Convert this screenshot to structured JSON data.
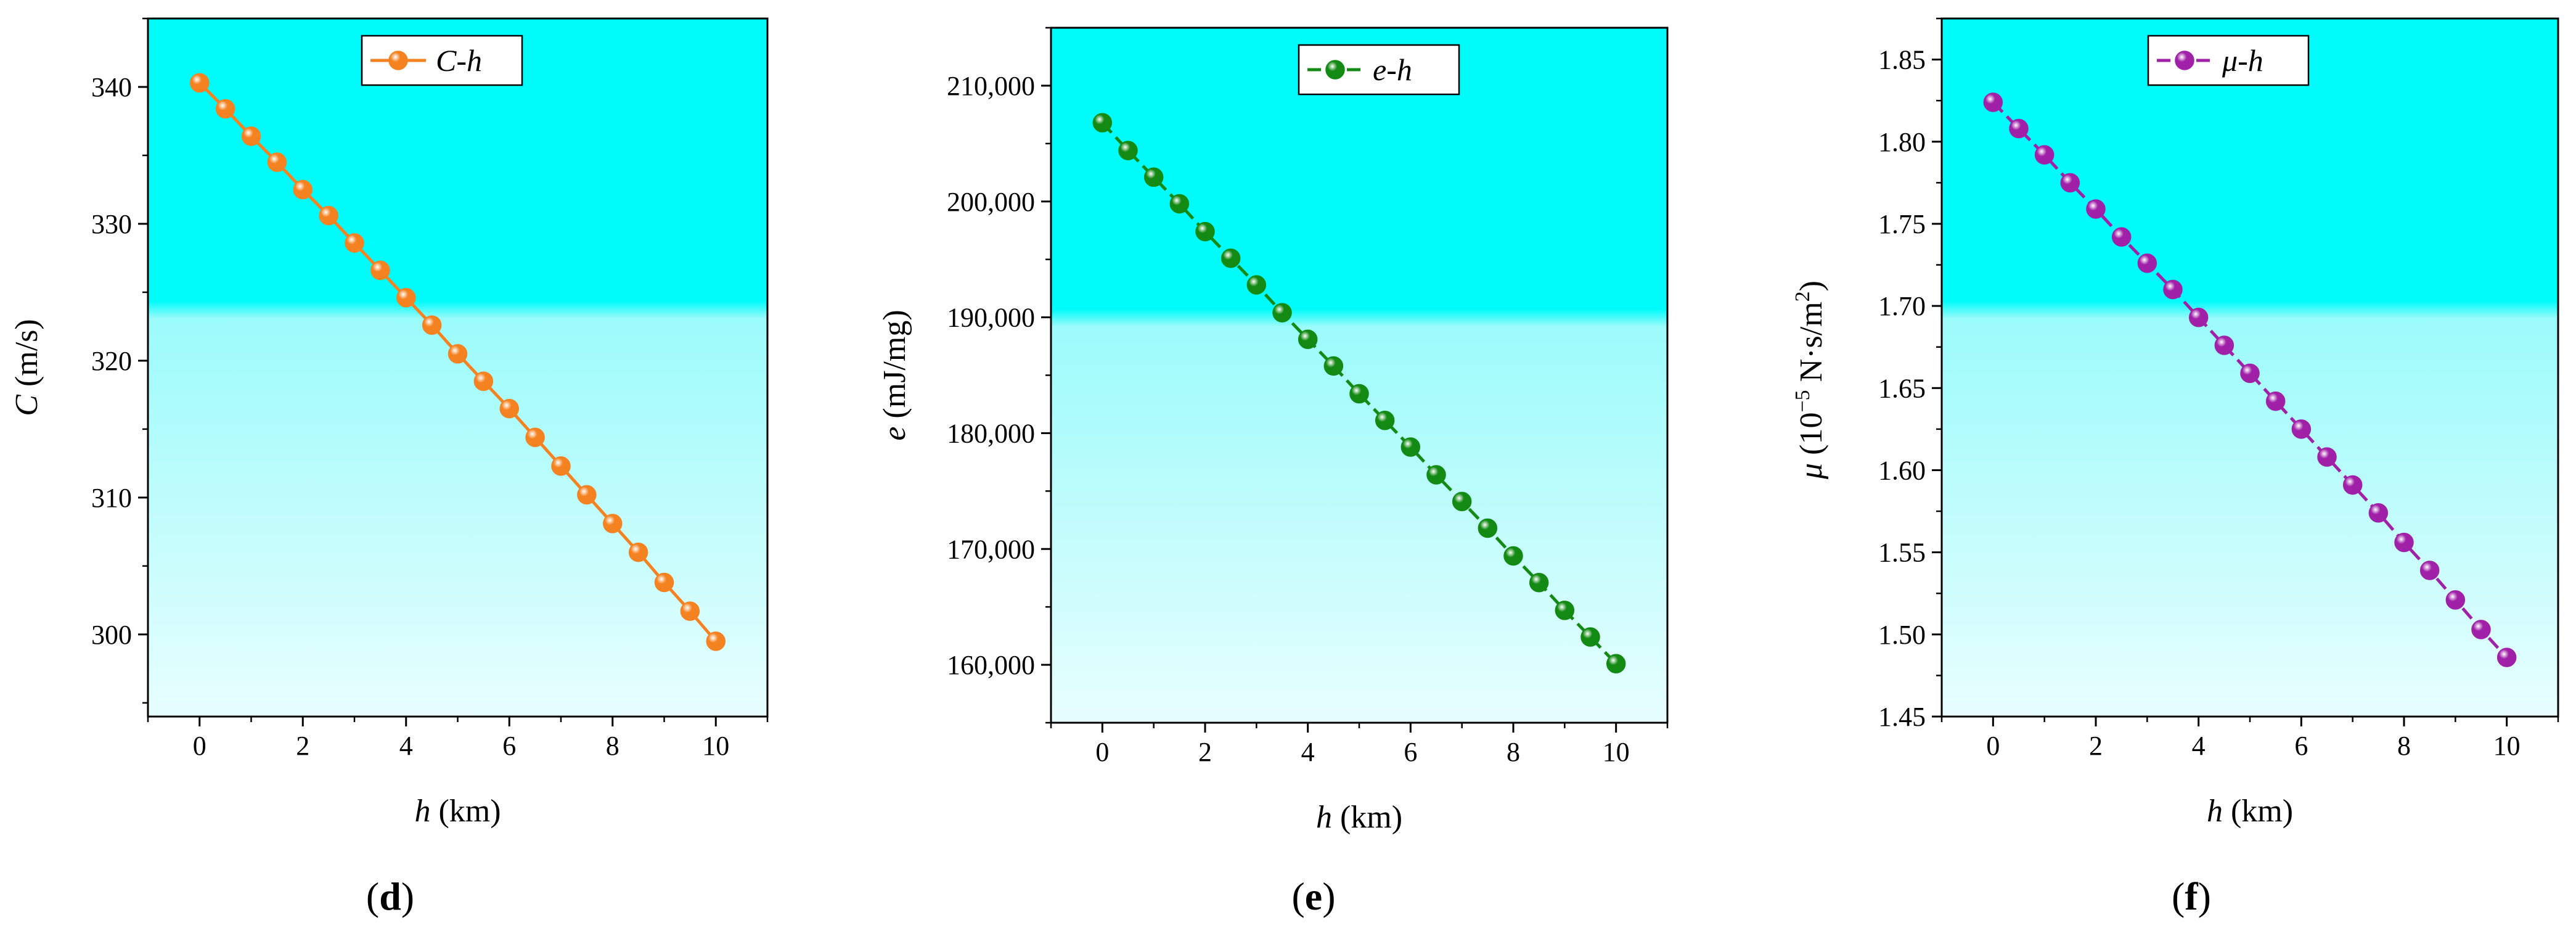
{
  "chart_data": [
    {
      "type": "line",
      "panel_label": "d",
      "legend": {
        "label": "C-h",
        "var": "C",
        "suffix": "-h",
        "placement": "top-center",
        "color": "#F58220"
      },
      "xlabel": {
        "var": "h",
        "rest": " (km)"
      },
      "ylabel": {
        "var": "C",
        "rest": " (m/s)"
      },
      "xlim": [
        -1,
        11
      ],
      "ylim": [
        294,
        345
      ],
      "xticks": [
        0,
        2,
        4,
        6,
        8,
        10
      ],
      "yticks": [
        300,
        310,
        320,
        330,
        340
      ],
      "ytick_labels": [
        "300",
        "310",
        "320",
        "330",
        "340"
      ],
      "x": [
        0,
        0.5,
        1,
        1.5,
        2,
        2.5,
        3,
        3.5,
        4,
        4.5,
        5,
        5.5,
        6,
        6.5,
        7,
        7.5,
        8,
        8.5,
        9,
        9.5,
        10
      ],
      "series": [
        {
          "name": "C-h",
          "line_style": "solid",
          "color": "#F58220",
          "values": [
            340.3,
            338.4,
            336.4,
            334.5,
            332.5,
            330.6,
            328.6,
            326.6,
            324.6,
            322.6,
            320.5,
            318.5,
            316.5,
            314.4,
            312.3,
            310.2,
            308.1,
            306.0,
            303.8,
            301.7,
            299.5
          ]
        }
      ]
    },
    {
      "type": "line",
      "panel_label": "e",
      "legend": {
        "label": "e-h",
        "var": "e",
        "suffix": "-h",
        "placement": "top-center",
        "color": "#138A13"
      },
      "xlabel": {
        "var": "h",
        "rest": " (km)"
      },
      "ylabel": {
        "var": "e",
        "rest": " (mJ/mg)"
      },
      "xlim": [
        -1,
        11
      ],
      "ylim": [
        155000,
        215000
      ],
      "xticks": [
        0,
        2,
        4,
        6,
        8,
        10
      ],
      "yticks": [
        160000,
        170000,
        180000,
        190000,
        200000,
        210000
      ],
      "ytick_labels": [
        "160,000",
        "170,000",
        "180,000",
        "190,000",
        "200,000",
        "210,000"
      ],
      "x": [
        0,
        0.5,
        1,
        1.5,
        2,
        2.5,
        3,
        3.5,
        4,
        4.5,
        5,
        5.5,
        6,
        6.5,
        7,
        7.5,
        8,
        8.5,
        9,
        9.5,
        10
      ],
      "series": [
        {
          "name": "e-h",
          "line_style": "dashed",
          "color": "#138A13",
          "values": [
            206800,
            204400,
            202100,
            199800,
            197400,
            195100,
            192800,
            190400,
            188100,
            185800,
            183400,
            181100,
            178800,
            176400,
            174100,
            171800,
            169400,
            167100,
            164700,
            162400,
            160100
          ]
        }
      ]
    },
    {
      "type": "line",
      "panel_label": "f",
      "legend": {
        "label": "μ-h",
        "var": "μ",
        "suffix": "-h",
        "placement": "top-center",
        "color": "#A020A8"
      },
      "xlabel": {
        "var": "h",
        "rest": " (km)"
      },
      "ylabel": {
        "var": "μ",
        "rest_pre": " (10",
        "sup1": "−5",
        "rest_mid": " N·s/m",
        "sup2": "2",
        "rest_post": ")"
      },
      "xlim": [
        -1,
        11
      ],
      "ylim": [
        1.45,
        1.875
      ],
      "xticks": [
        0,
        2,
        4,
        6,
        8,
        10
      ],
      "yticks": [
        1.45,
        1.5,
        1.55,
        1.6,
        1.65,
        1.7,
        1.75,
        1.8,
        1.85
      ],
      "ytick_labels": [
        "1.45",
        "1.50",
        "1.55",
        "1.60",
        "1.65",
        "1.70",
        "1.75",
        "1.80",
        "1.85"
      ],
      "x": [
        0,
        0.5,
        1,
        1.5,
        2,
        2.5,
        3,
        3.5,
        4,
        4.5,
        5,
        5.5,
        6,
        6.5,
        7,
        7.5,
        8,
        8.5,
        9,
        9.5,
        10
      ],
      "series": [
        {
          "name": "μ-h",
          "line_style": "dashed",
          "color": "#A020A8",
          "values": [
            1.824,
            1.808,
            1.792,
            1.775,
            1.759,
            1.742,
            1.726,
            1.71,
            1.693,
            1.676,
            1.659,
            1.642,
            1.625,
            1.608,
            1.591,
            1.574,
            1.556,
            1.539,
            1.521,
            1.503,
            1.486
          ]
        }
      ]
    }
  ],
  "colors": {
    "plot_bg_top": "#00FBFB",
    "plot_bg_bottom": "#E8FEFE"
  },
  "x_tick_labels": [
    "0",
    "2",
    "4",
    "6",
    "8",
    "10"
  ]
}
